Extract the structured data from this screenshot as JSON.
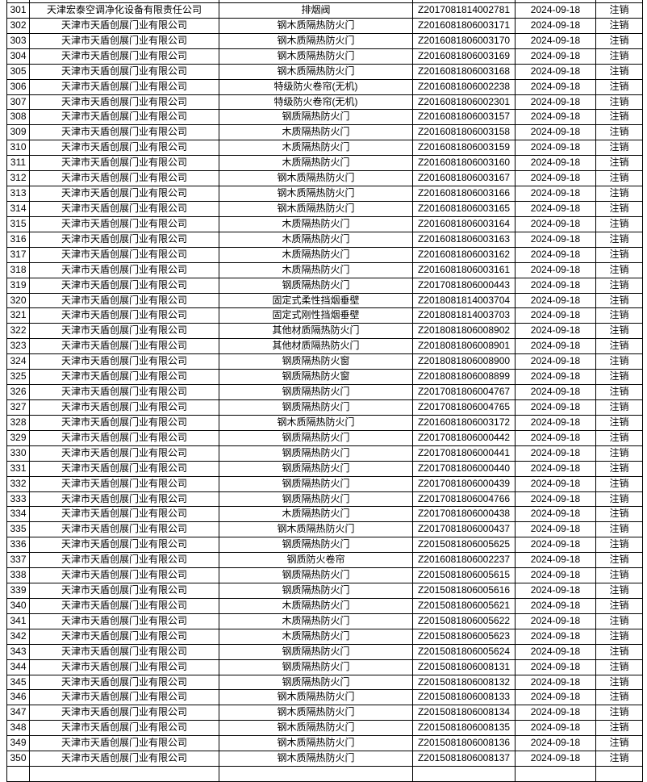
{
  "colors": {
    "border": "#000000",
    "text": "#000000",
    "background": "#ffffff"
  },
  "table": {
    "column_keys": [
      "no",
      "company",
      "product",
      "cert",
      "date",
      "status"
    ],
    "rows": [
      {
        "no": "301",
        "company": "天津宏泰空调净化设备有限责任公司",
        "product": "排烟阀",
        "cert": "Z2017081814002781",
        "date": "2024-09-18",
        "status": "注销"
      },
      {
        "no": "302",
        "company": "天津市天盾创展门业有限公司",
        "product": "钢木质隔热防火门",
        "cert": "Z2016081806003171",
        "date": "2024-09-18",
        "status": "注销"
      },
      {
        "no": "303",
        "company": "天津市天盾创展门业有限公司",
        "product": "钢木质隔热防火门",
        "cert": "Z2016081806003170",
        "date": "2024-09-18",
        "status": "注销"
      },
      {
        "no": "304",
        "company": "天津市天盾创展门业有限公司",
        "product": "钢木质隔热防火门",
        "cert": "Z2016081806003169",
        "date": "2024-09-18",
        "status": "注销"
      },
      {
        "no": "305",
        "company": "天津市天盾创展门业有限公司",
        "product": "钢木质隔热防火门",
        "cert": "Z2016081806003168",
        "date": "2024-09-18",
        "status": "注销"
      },
      {
        "no": "306",
        "company": "天津市天盾创展门业有限公司",
        "product": "特级防火卷帘(无机)",
        "cert": "Z2016081806002238",
        "date": "2024-09-18",
        "status": "注销"
      },
      {
        "no": "307",
        "company": "天津市天盾创展门业有限公司",
        "product": "特级防火卷帘(无机)",
        "cert": "Z2016081806002301",
        "date": "2024-09-18",
        "status": "注销"
      },
      {
        "no": "308",
        "company": "天津市天盾创展门业有限公司",
        "product": "钢质隔热防火门",
        "cert": "Z2016081806003157",
        "date": "2024-09-18",
        "status": "注销"
      },
      {
        "no": "309",
        "company": "天津市天盾创展门业有限公司",
        "product": "木质隔热防火门",
        "cert": "Z2016081806003158",
        "date": "2024-09-18",
        "status": "注销"
      },
      {
        "no": "310",
        "company": "天津市天盾创展门业有限公司",
        "product": "木质隔热防火门",
        "cert": "Z2016081806003159",
        "date": "2024-09-18",
        "status": "注销"
      },
      {
        "no": "311",
        "company": "天津市天盾创展门业有限公司",
        "product": "木质隔热防火门",
        "cert": "Z2016081806003160",
        "date": "2024-09-18",
        "status": "注销"
      },
      {
        "no": "312",
        "company": "天津市天盾创展门业有限公司",
        "product": "钢木质隔热防火门",
        "cert": "Z2016081806003167",
        "date": "2024-09-18",
        "status": "注销"
      },
      {
        "no": "313",
        "company": "天津市天盾创展门业有限公司",
        "product": "钢木质隔热防火门",
        "cert": "Z2016081806003166",
        "date": "2024-09-18",
        "status": "注销"
      },
      {
        "no": "314",
        "company": "天津市天盾创展门业有限公司",
        "product": "钢木质隔热防火门",
        "cert": "Z2016081806003165",
        "date": "2024-09-18",
        "status": "注销"
      },
      {
        "no": "315",
        "company": "天津市天盾创展门业有限公司",
        "product": "木质隔热防火门",
        "cert": "Z2016081806003164",
        "date": "2024-09-18",
        "status": "注销"
      },
      {
        "no": "316",
        "company": "天津市天盾创展门业有限公司",
        "product": "木质隔热防火门",
        "cert": "Z2016081806003163",
        "date": "2024-09-18",
        "status": "注销"
      },
      {
        "no": "317",
        "company": "天津市天盾创展门业有限公司",
        "product": "木质隔热防火门",
        "cert": "Z2016081806003162",
        "date": "2024-09-18",
        "status": "注销"
      },
      {
        "no": "318",
        "company": "天津市天盾创展门业有限公司",
        "product": "木质隔热防火门",
        "cert": "Z2016081806003161",
        "date": "2024-09-18",
        "status": "注销"
      },
      {
        "no": "319",
        "company": "天津市天盾创展门业有限公司",
        "product": "钢质隔热防火门",
        "cert": "Z2017081806000443",
        "date": "2024-09-18",
        "status": "注销"
      },
      {
        "no": "320",
        "company": "天津市天盾创展门业有限公司",
        "product": "固定式柔性挡烟垂壁",
        "cert": "Z2018081814003704",
        "date": "2024-09-18",
        "status": "注销"
      },
      {
        "no": "321",
        "company": "天津市天盾创展门业有限公司",
        "product": "固定式刚性挡烟垂壁",
        "cert": "Z2018081814003703",
        "date": "2024-09-18",
        "status": "注销"
      },
      {
        "no": "322",
        "company": "天津市天盾创展门业有限公司",
        "product": "其他材质隔热防火门",
        "cert": "Z2018081806008902",
        "date": "2024-09-18",
        "status": "注销"
      },
      {
        "no": "323",
        "company": "天津市天盾创展门业有限公司",
        "product": "其他材质隔热防火门",
        "cert": "Z2018081806008901",
        "date": "2024-09-18",
        "status": "注销"
      },
      {
        "no": "324",
        "company": "天津市天盾创展门业有限公司",
        "product": "钢质隔热防火窗",
        "cert": "Z2018081806008900",
        "date": "2024-09-18",
        "status": "注销"
      },
      {
        "no": "325",
        "company": "天津市天盾创展门业有限公司",
        "product": "钢质隔热防火窗",
        "cert": "Z2018081806008899",
        "date": "2024-09-18",
        "status": "注销"
      },
      {
        "no": "326",
        "company": "天津市天盾创展门业有限公司",
        "product": "钢质隔热防火门",
        "cert": "Z2017081806004767",
        "date": "2024-09-18",
        "status": "注销"
      },
      {
        "no": "327",
        "company": "天津市天盾创展门业有限公司",
        "product": "钢质隔热防火门",
        "cert": "Z2017081806004765",
        "date": "2024-09-18",
        "status": "注销"
      },
      {
        "no": "328",
        "company": "天津市天盾创展门业有限公司",
        "product": "钢木质隔热防火门",
        "cert": "Z2016081806003172",
        "date": "2024-09-18",
        "status": "注销"
      },
      {
        "no": "329",
        "company": "天津市天盾创展门业有限公司",
        "product": "钢质隔热防火门",
        "cert": "Z2017081806000442",
        "date": "2024-09-18",
        "status": "注销"
      },
      {
        "no": "330",
        "company": "天津市天盾创展门业有限公司",
        "product": "钢质隔热防火门",
        "cert": "Z2017081806000441",
        "date": "2024-09-18",
        "status": "注销"
      },
      {
        "no": "331",
        "company": "天津市天盾创展门业有限公司",
        "product": "钢质隔热防火门",
        "cert": "Z2017081806000440",
        "date": "2024-09-18",
        "status": "注销"
      },
      {
        "no": "332",
        "company": "天津市天盾创展门业有限公司",
        "product": "钢质隔热防火门",
        "cert": "Z2017081806000439",
        "date": "2024-09-18",
        "status": "注销"
      },
      {
        "no": "333",
        "company": "天津市天盾创展门业有限公司",
        "product": "钢质隔热防火门",
        "cert": "Z2017081806004766",
        "date": "2024-09-18",
        "status": "注销"
      },
      {
        "no": "334",
        "company": "天津市天盾创展门业有限公司",
        "product": "木质隔热防火门",
        "cert": "Z2017081806000438",
        "date": "2024-09-18",
        "status": "注销"
      },
      {
        "no": "335",
        "company": "天津市天盾创展门业有限公司",
        "product": "钢木质隔热防火门",
        "cert": "Z2017081806000437",
        "date": "2024-09-18",
        "status": "注销"
      },
      {
        "no": "336",
        "company": "天津市天盾创展门业有限公司",
        "product": "钢质隔热防火门",
        "cert": "Z2015081806005625",
        "date": "2024-09-18",
        "status": "注销"
      },
      {
        "no": "337",
        "company": "天津市天盾创展门业有限公司",
        "product": "钢质防火卷帘",
        "cert": "Z2016081806002237",
        "date": "2024-09-18",
        "status": "注销"
      },
      {
        "no": "338",
        "company": "天津市天盾创展门业有限公司",
        "product": "钢质隔热防火门",
        "cert": "Z2015081806005615",
        "date": "2024-09-18",
        "status": "注销"
      },
      {
        "no": "339",
        "company": "天津市天盾创展门业有限公司",
        "product": "钢质隔热防火门",
        "cert": "Z2015081806005616",
        "date": "2024-09-18",
        "status": "注销"
      },
      {
        "no": "340",
        "company": "天津市天盾创展门业有限公司",
        "product": "木质隔热防火门",
        "cert": "Z2015081806005621",
        "date": "2024-09-18",
        "status": "注销"
      },
      {
        "no": "341",
        "company": "天津市天盾创展门业有限公司",
        "product": "木质隔热防火门",
        "cert": "Z2015081806005622",
        "date": "2024-09-18",
        "status": "注销"
      },
      {
        "no": "342",
        "company": "天津市天盾创展门业有限公司",
        "product": "木质隔热防火门",
        "cert": "Z2015081806005623",
        "date": "2024-09-18",
        "status": "注销"
      },
      {
        "no": "343",
        "company": "天津市天盾创展门业有限公司",
        "product": "钢质隔热防火门",
        "cert": "Z2015081806005624",
        "date": "2024-09-18",
        "status": "注销"
      },
      {
        "no": "344",
        "company": "天津市天盾创展门业有限公司",
        "product": "钢质隔热防火门",
        "cert": "Z2015081806008131",
        "date": "2024-09-18",
        "status": "注销"
      },
      {
        "no": "345",
        "company": "天津市天盾创展门业有限公司",
        "product": "钢质隔热防火门",
        "cert": "Z2015081806008132",
        "date": "2024-09-18",
        "status": "注销"
      },
      {
        "no": "346",
        "company": "天津市天盾创展门业有限公司",
        "product": "钢木质隔热防火门",
        "cert": "Z2015081806008133",
        "date": "2024-09-18",
        "status": "注销"
      },
      {
        "no": "347",
        "company": "天津市天盾创展门业有限公司",
        "product": "钢木质隔热防火门",
        "cert": "Z2015081806008134",
        "date": "2024-09-18",
        "status": "注销"
      },
      {
        "no": "348",
        "company": "天津市天盾创展门业有限公司",
        "product": "钢木质隔热防火门",
        "cert": "Z2015081806008135",
        "date": "2024-09-18",
        "status": "注销"
      },
      {
        "no": "349",
        "company": "天津市天盾创展门业有限公司",
        "product": "钢木质隔热防火门",
        "cert": "Z2015081806008136",
        "date": "2024-09-18",
        "status": "注销"
      },
      {
        "no": "350",
        "company": "天津市天盾创展门业有限公司",
        "product": "钢木质隔热防火门",
        "cert": "Z2015081806008137",
        "date": "2024-09-18",
        "status": "注销"
      }
    ]
  }
}
